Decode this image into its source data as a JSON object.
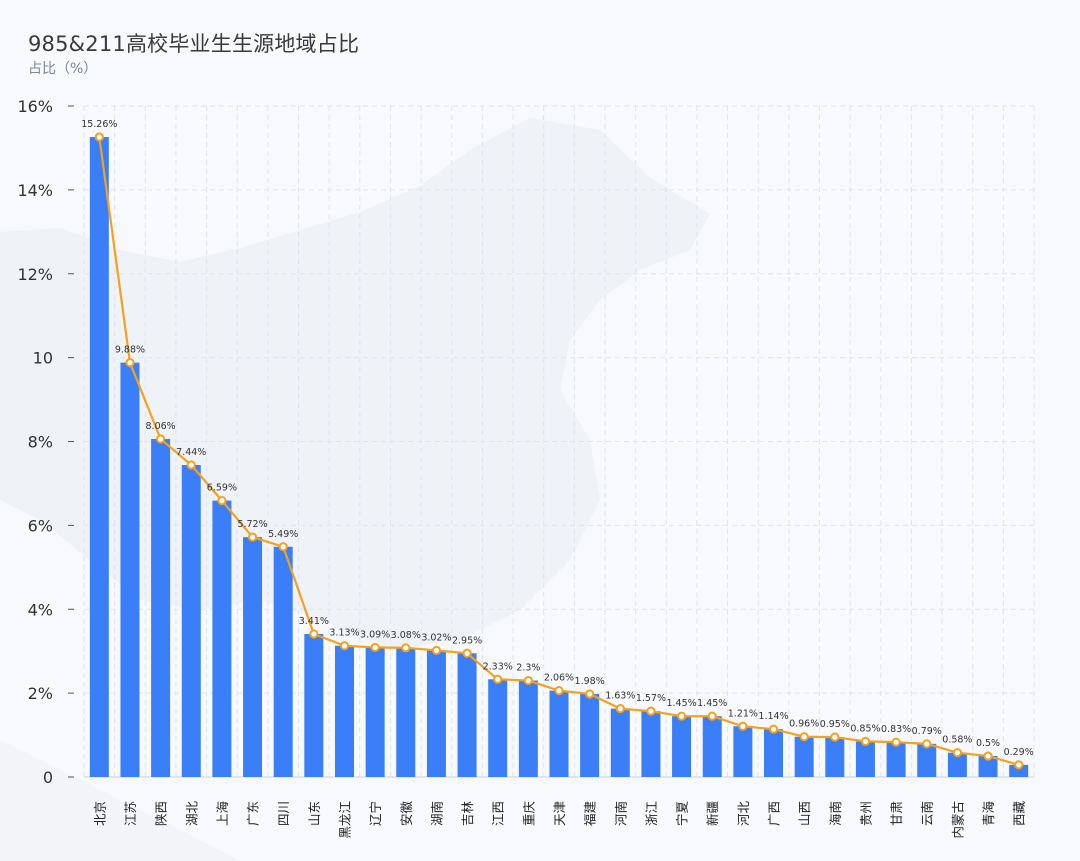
{
  "title": "985&211高校毕业生生源地域占比",
  "subtitle": "占比（%）",
  "colors": {
    "bar": "#3a7ef8",
    "line": "#f5a11d",
    "grid": "#dfe5ee"
  },
  "chart_data": {
    "type": "bar",
    "title": "985&211高校毕业生生源地域占比",
    "ylabel": "占比（%）",
    "ylim": [
      0,
      16
    ],
    "yticks": [
      "0",
      "2%",
      "4%",
      "6%",
      "8%",
      "10",
      "12%",
      "14%",
      "16%"
    ],
    "grid": true,
    "categories": [
      "北京",
      "江苏",
      "陕西",
      "湖北",
      "上海",
      "广东",
      "四川",
      "山东",
      "黑龙江",
      "辽宁",
      "安徽",
      "湖南",
      "吉林",
      "江西",
      "重庆",
      "天津",
      "福建",
      "河南",
      "浙江",
      "宁夏",
      "新疆",
      "河北",
      "广西",
      "山西",
      "海南",
      "贵州",
      "甘肃",
      "云南",
      "内蒙古",
      "青海",
      "西藏"
    ],
    "values": [
      15.26,
      9.88,
      8.06,
      7.44,
      6.59,
      5.72,
      5.49,
      3.41,
      3.13,
      3.09,
      3.08,
      3.02,
      2.95,
      2.33,
      2.3,
      2.06,
      1.98,
      1.63,
      1.57,
      1.45,
      1.45,
      1.21,
      1.14,
      0.96,
      0.95,
      0.85,
      0.83,
      0.79,
      0.58,
      0.5,
      0.29
    ],
    "labels": [
      "15.26%",
      "9.88%",
      "8.06%",
      "7.44%",
      "6.59%",
      "5.72%",
      "5.49%",
      "3.41%",
      "3.13%",
      "3.09%",
      "3.08%",
      "3.02%",
      "2.95%",
      "2.33%",
      "2.3%",
      "2.06%",
      "1.98%",
      "1.63%",
      "1.57%",
      "1.45%",
      "1.45%",
      "1.21%",
      "1.14%",
      "0.96%",
      "0.95%",
      "0.85%",
      "0.83%",
      "0.79%",
      "0.58%",
      "0.5%",
      "0.29%"
    ],
    "overlay": "line"
  }
}
